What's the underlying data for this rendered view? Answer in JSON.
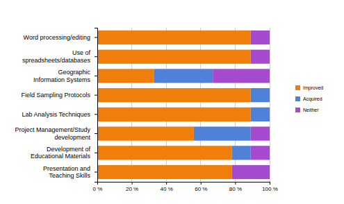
{
  "chart_data": {
    "type": "bar",
    "orientation": "horizontal",
    "stacked": true,
    "grid": true,
    "legend": "right",
    "categories": [
      "Word processing/editing",
      "Use of spreadsheets/databases",
      "Geographic Information Systems",
      "Field Sampling Protocols",
      "Lab Analysis Techniques",
      "Project Management/Study development",
      "Development of Educational Materials",
      "Presentation and Teaching Skills"
    ],
    "series": [
      {
        "name": "Improved",
        "color": "#ef7f0a",
        "values": [
          89,
          89,
          33,
          89,
          89,
          56,
          78,
          78
        ]
      },
      {
        "name": "Acquired",
        "color": "#4f81d8",
        "values": [
          0,
          0,
          34,
          11,
          11,
          33,
          11,
          0
        ]
      },
      {
        "name": "Neither",
        "color": "#a64ad0",
        "values": [
          11,
          11,
          33,
          0,
          0,
          11,
          11,
          22
        ]
      }
    ],
    "xlim": [
      0,
      100
    ],
    "xticks": [
      {
        "value": 0,
        "label": "0 %"
      },
      {
        "value": 20,
        "label": "20 %"
      },
      {
        "value": 40,
        "label": "40 %"
      },
      {
        "value": 60,
        "label": "60 %"
      },
      {
        "value": 80,
        "label": "80 %"
      },
      {
        "value": 100,
        "label": "100 %"
      }
    ]
  }
}
